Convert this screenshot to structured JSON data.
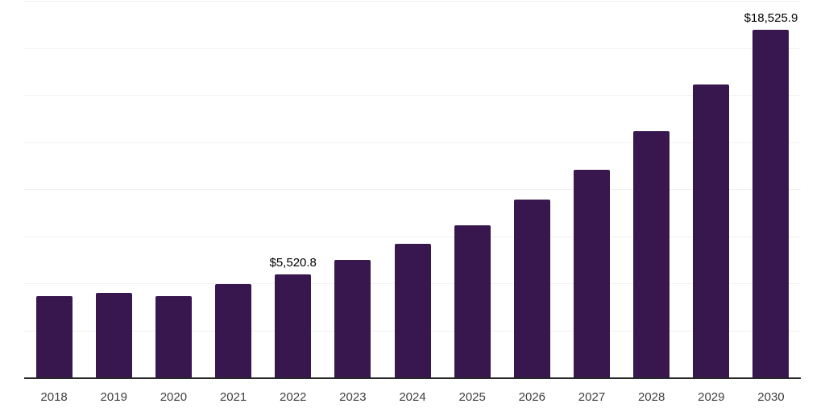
{
  "chart_data": {
    "type": "bar",
    "title": "",
    "xlabel": "",
    "ylabel": "",
    "categories": [
      "2018",
      "2019",
      "2020",
      "2021",
      "2022",
      "2023",
      "2024",
      "2025",
      "2026",
      "2027",
      "2028",
      "2029",
      "2030"
    ],
    "values": [
      4380,
      4510,
      4360,
      5020,
      5520.8,
      6300,
      7140,
      8140,
      9470,
      11090,
      13100,
      15580,
      18525.9
    ],
    "value_labels": [
      "",
      "",
      "",
      "",
      "$5,520.8",
      "",
      "",
      "",
      "",
      "",
      "",
      "",
      "$18,525.9"
    ],
    "ylim": [
      0,
      20000
    ],
    "gridline_step": 2500,
    "grid": "horizontal",
    "legend": "none",
    "colors": {
      "bar": "#38164e",
      "axis_line": "#282828",
      "gridline": "#f1f1f1",
      "value_label": "#000000",
      "tick_label": "#404040",
      "background": "#ffffff"
    }
  }
}
